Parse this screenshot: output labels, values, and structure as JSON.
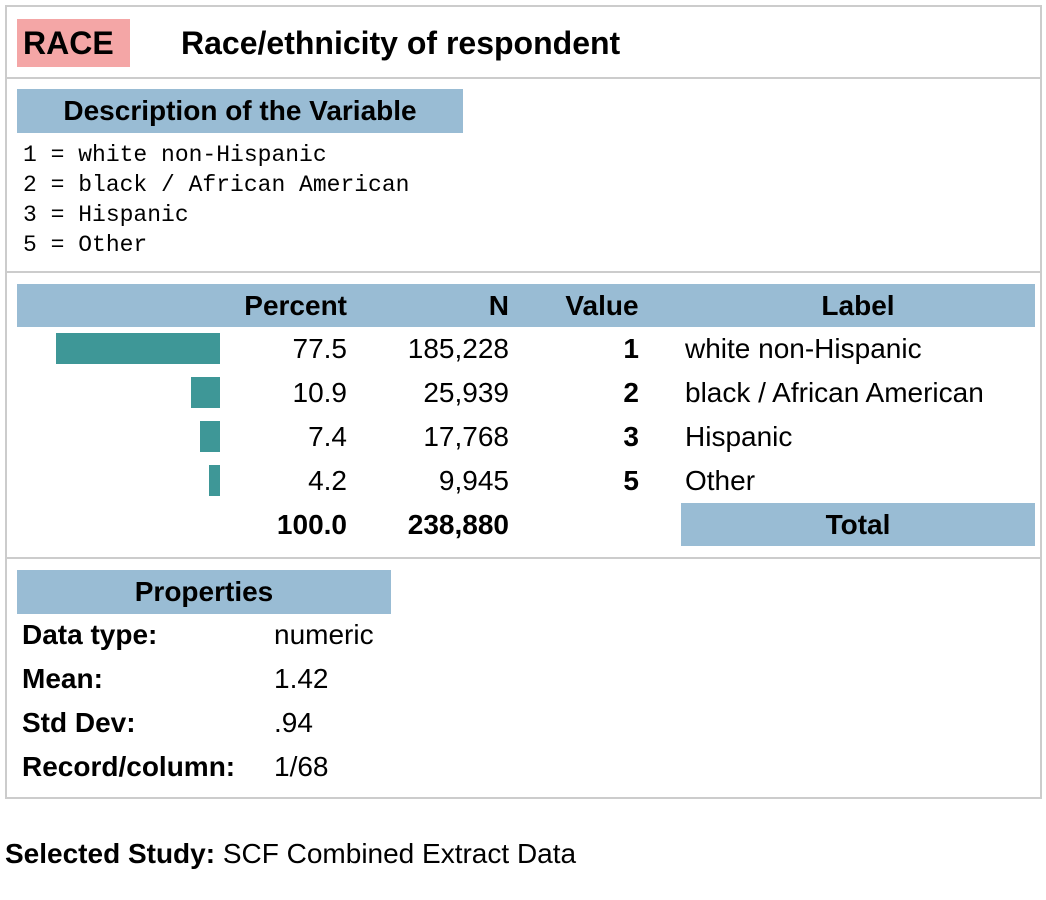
{
  "variable": {
    "name": "RACE",
    "title": "Race/ethnicity of respondent"
  },
  "description": {
    "header": "Description of the Variable",
    "lines": [
      "1 = white non-Hispanic",
      "2 = black / African American",
      "3 = Hispanic",
      "5 = Other"
    ]
  },
  "colors": {
    "variable_badge": "#f4a6a6",
    "header_fill": "#99bcd4",
    "bar_fill": "#3e9797",
    "border": "#cccccc"
  },
  "frequency_table": {
    "headers": {
      "percent": "Percent",
      "n": "N",
      "value": "Value",
      "label": "Label"
    },
    "rows": [
      {
        "percent": "77.5",
        "n": "185,228",
        "value": "1",
        "label": "white non-Hispanic"
      },
      {
        "percent": "10.9",
        "n": "25,939",
        "value": "2",
        "label": "black / African American"
      },
      {
        "percent": "7.4",
        "n": "17,768",
        "value": "3",
        "label": "Hispanic"
      },
      {
        "percent": "4.2",
        "n": "9,945",
        "value": "5",
        "label": "Other"
      }
    ],
    "total": {
      "percent": "100.0",
      "n": "238,880",
      "label": "Total"
    }
  },
  "properties": {
    "header": "Properties",
    "items": [
      {
        "key": "Data type:",
        "value": "numeric"
      },
      {
        "key": "Mean:",
        "value": "1.42"
      },
      {
        "key": "Std Dev:",
        "value": ".94"
      },
      {
        "key": "Record/column:",
        "value": "1/68"
      }
    ]
  },
  "study": {
    "label": "Selected Study:",
    "value": "SCF Combined Extract Data"
  }
}
